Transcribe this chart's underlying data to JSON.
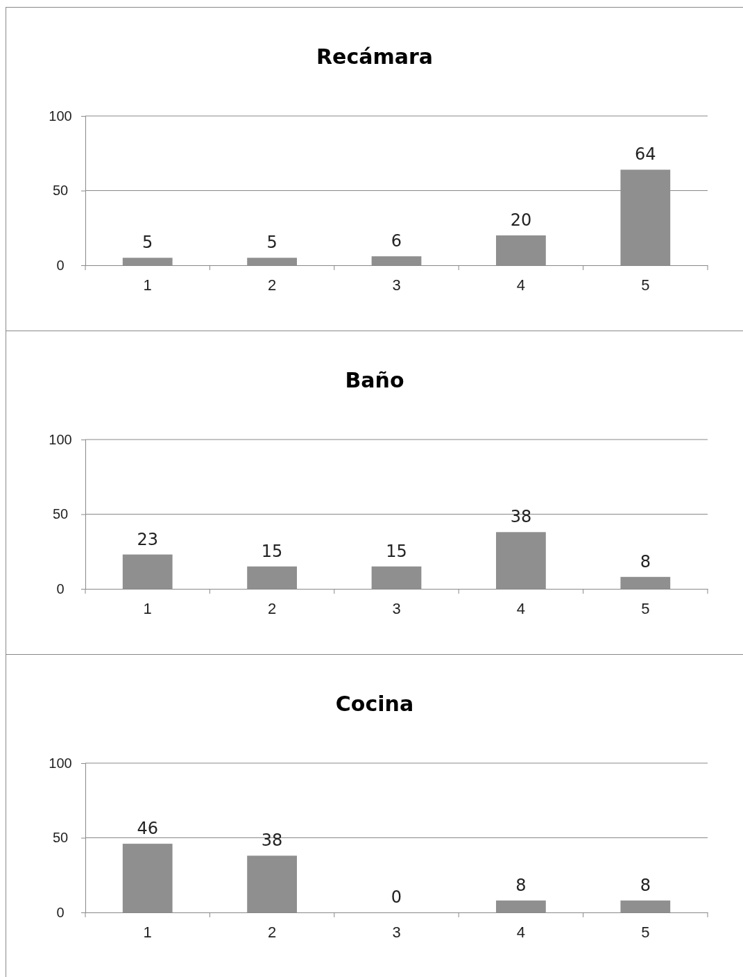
{
  "chart_data": [
    {
      "type": "bar",
      "title": "Recámara",
      "categories": [
        "1",
        "2",
        "3",
        "4",
        "5"
      ],
      "values": [
        5,
        5,
        6,
        20,
        64
      ],
      "color": "#8f8f8f",
      "ylim": [
        0,
        100
      ],
      "yticks": [
        0,
        50,
        100
      ],
      "grid": "y",
      "data_labels": true
    },
    {
      "type": "bar",
      "title": "Baño",
      "categories": [
        "1",
        "2",
        "3",
        "4",
        "5"
      ],
      "values": [
        23,
        15,
        15,
        38,
        8
      ],
      "color": "#8f8f8f",
      "ylim": [
        0,
        100
      ],
      "yticks": [
        0,
        50,
        100
      ],
      "grid": "y",
      "data_labels": true
    },
    {
      "type": "bar",
      "title": "Cocina",
      "categories": [
        "1",
        "2",
        "3",
        "4",
        "5"
      ],
      "values": [
        46,
        38,
        0,
        8,
        8
      ],
      "color": "#8f8f8f",
      "ylim": [
        0,
        100
      ],
      "yticks": [
        0,
        50,
        100
      ],
      "grid": "y",
      "data_labels": true
    }
  ]
}
